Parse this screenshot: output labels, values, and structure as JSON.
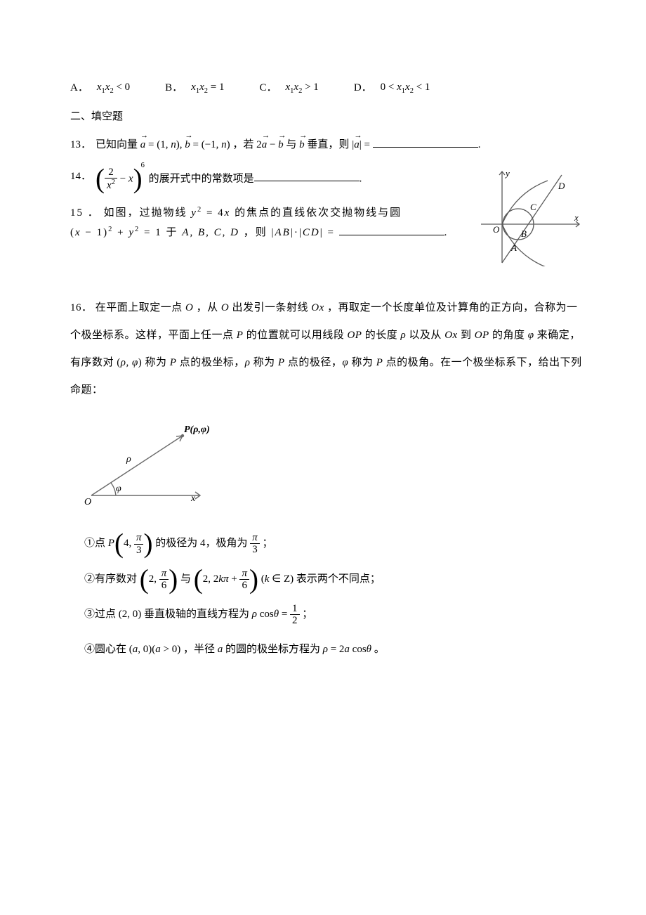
{
  "multichoice": {
    "options": [
      {
        "label": "A．",
        "expr_html": "<span class='math'>x</span><span class='sub'>1</span><span class='math'>x</span><span class='sub'>2</span> &lt; 0"
      },
      {
        "label": "B．",
        "expr_html": "<span class='math'>x</span><span class='sub'>1</span><span class='math'>x</span><span class='sub'>2</span> = 1"
      },
      {
        "label": "C．",
        "expr_html": "<span class='math'>x</span><span class='sub'>1</span><span class='math'>x</span><span class='sub'>2</span> &gt; 1"
      },
      {
        "label": "D．",
        "expr_html": "0 &lt; <span class='math'>x</span><span class='sub'>1</span><span class='math'>x</span><span class='sub'>2</span> &lt; 1"
      }
    ]
  },
  "section2": "二、填空题",
  "q13": {
    "num": "13．",
    "pre": "已知向量",
    "a_eq": " = (1, <span class='math'>n</span>),",
    "b_eq": " = (−1, <span class='math'>n</span>)",
    "mid1": "，若 2",
    "mid2": " − ",
    "mid3": " 与 ",
    "mid4": " 垂直，则 ",
    "eq": " = ",
    "period": "."
  },
  "q14": {
    "num": "14．",
    "tail": "的展开式中的常数项是",
    "period": "."
  },
  "q15": {
    "num": "15 ．",
    "t1": "如图，过抛物线 ",
    "eq1": "<span class='math'>y</span><span class='sup'>2</span> = 4<span class='math'>x</span>",
    "t2": " 的焦点的直线依次交抛物线与圆",
    "eq2": "(<span class='math'>x</span> − 1)<span class='sup'>2</span> + <span class='math'>y</span><span class='sup'>2</span> = 1",
    "t3": " 于 <span class='math'>A</span>, <span class='math'>B</span>, <span class='math'>C</span>, <span class='math'>D</span> ，则 ",
    "eq3": "|<span class='math'>AB</span>|·|<span class='math'>CD</span>| = ",
    "period": "."
  },
  "q16": {
    "num": "16．",
    "body": "在平面上取定一点 <span class='math'>O</span> ，从 <span class='math'>O</span> 出发引一条射线 <span class='math'>Ox</span> ，再取定一个长度单位及计算角的正方向，合称为一个极坐标系。这样，平面上任一点 <span class='math'>P</span> 的位置就可以用线段 <span class='math'>OP</span> 的长度 <span class='math'>ρ</span> 以及从 <span class='math'>Ox</span> 到 <span class='math'>OP</span> 的角度 <span class='math'>φ</span> 来确定，有序数对 (<span class='math'>ρ</span>, <span class='math'>φ</span>) 称为 <span class='math'>P</span> 点的极坐标，<span class='math'>ρ</span> 称为 <span class='math'>P</span> 点的极径，<span class='math'>φ</span> 称为 <span class='math'>P</span> 点的极角。在一个极坐标系下，给出下列命题：",
    "statements": {
      "s1": {
        "pre": "①点 ",
        "mid": " 的极径为 4，极角为 ",
        "end": " ；"
      },
      "s2": {
        "pre": "②有序数对 ",
        "mid": " 与 ",
        "cond": "(<span class='math'>k</span> ∈ <span class='math' style='font-style:normal'>Z</span>)",
        "end": " 表示两个不同点；"
      },
      "s3": {
        "pre": "③过点 (2, 0) 垂直极轴的直线方程为 ",
        "eq": "<span class='math'>ρ</span> cos<span class='math'>θ</span> = ",
        "end": " ；"
      },
      "s4": {
        "pre": "④圆心在 (<span class='math'>a</span>, 0)(<span class='math'>a</span> &gt; 0) ，半径 <span class='math'>a</span> 的圆的极坐标方程为 ",
        "eq": "<span class='math'>ρ</span> = 2<span class='math'>a</span> cos<span class='math'>θ</span>",
        "end": " 。"
      }
    }
  },
  "figures": {
    "fig15": {
      "labels": {
        "y": "y",
        "x": "x",
        "O": "O",
        "A": "A",
        "B": "B",
        "C": "C",
        "D": "D"
      },
      "line_color": "#5a5a5a",
      "curve_color": "#5a5a5a"
    },
    "fig16": {
      "labels": {
        "O": "O",
        "x": "x",
        "P": "P(ρ,φ)",
        "rho": "ρ",
        "phi": "φ"
      },
      "line_color": "#6a6a6a"
    }
  }
}
